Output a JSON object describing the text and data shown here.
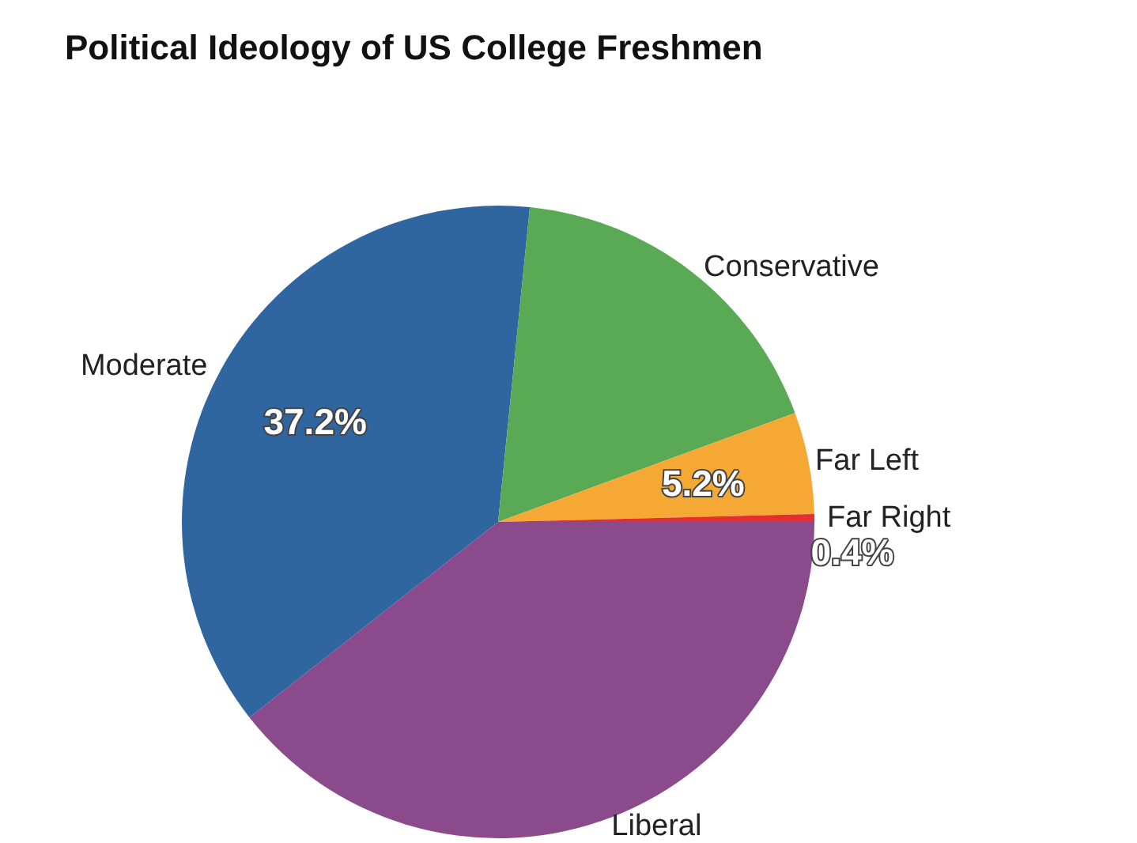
{
  "chart_data": {
    "type": "pie",
    "title": "Political Ideology of US College Freshmen",
    "categories": [
      "Liberal",
      "Moderate",
      "Conservative",
      "Far Left",
      "Far Right"
    ],
    "values": [
      39.4,
      37.2,
      17.8,
      5.2,
      0.4
    ],
    "colors": [
      "#8b4a8c",
      "#2f66a0",
      "#5aaa55",
      "#f5a833",
      "#e03030"
    ],
    "value_labels": [
      null,
      "37.2%",
      null,
      "5.2%",
      "0.4%"
    ],
    "legend": false
  }
}
